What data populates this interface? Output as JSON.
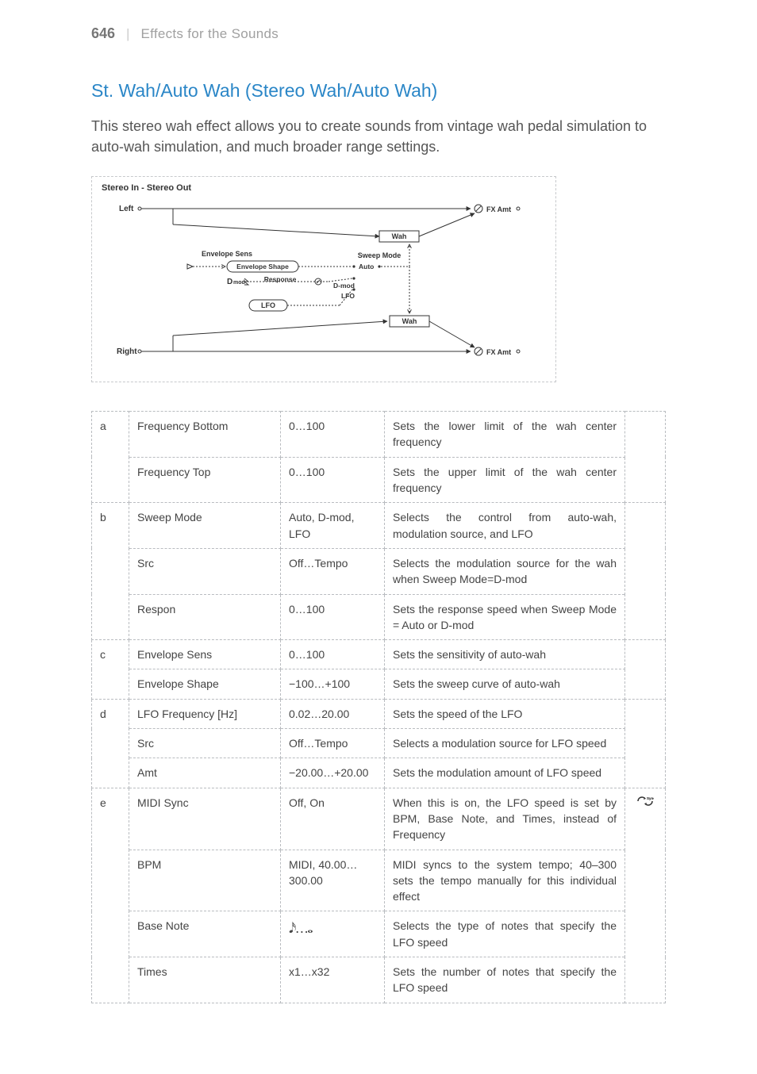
{
  "header": {
    "page_number": "646",
    "section": "Effects for the Sounds"
  },
  "title": "St. Wah/Auto Wah (Stereo Wah/Auto Wah)",
  "intro": "This stereo wah effect allows you to create sounds from vintage wah pedal simulation to auto-wah simulation, and much broader range settings.",
  "diagram": {
    "caption": "Stereo In - Stereo Out",
    "left_label": "Left",
    "right_label": "Right",
    "fx_amt": "FX Amt",
    "wah": "Wah",
    "envelope_sens": "Envelope Sens",
    "envelope_shape": "Envelope Shape",
    "sweep_mode": "Sweep Mode",
    "auto": "Auto",
    "response": "Response",
    "d_mod_label": "D-mod",
    "d_mod_bold": "D",
    "d_mod_suffix": "mod",
    "lfo_label": "LFO",
    "lfo_block": "LFO"
  },
  "table": {
    "rows": [
      {
        "group": "a",
        "name": "Frequency Bottom",
        "range": "0…100",
        "desc": "Sets the lower limit of the wah center frequency",
        "icon": ""
      },
      {
        "group": "",
        "name": "Frequency Top",
        "range": "0…100",
        "desc": "Sets the upper limit of the wah center frequency",
        "icon": ""
      },
      {
        "group": "b",
        "name": "Sweep Mode",
        "range": "Auto, D-mod, LFO",
        "desc": "Selects the control from auto-wah, modulation source, and LFO",
        "icon": ""
      },
      {
        "group": "",
        "name": "Src",
        "range": "Off…Tempo",
        "desc": "Selects the modulation source for the wah when Sweep Mode=D-mod",
        "icon": ""
      },
      {
        "group": "",
        "name": "Respon",
        "range": "0…100",
        "desc": "Sets the response speed when Sweep Mode = Auto or D-mod",
        "icon": ""
      },
      {
        "group": "c",
        "name": "Envelope Sens",
        "range": "0…100",
        "desc": "Sets the sensitivity of auto-wah",
        "icon": ""
      },
      {
        "group": "",
        "name": "Envelope Shape",
        "range": "−100…+100",
        "desc": "Sets the sweep curve of auto-wah",
        "icon": ""
      },
      {
        "group": "d",
        "name": "LFO Frequency [Hz]",
        "range": "0.02…20.00",
        "desc": "Sets the speed of the LFO",
        "icon": ""
      },
      {
        "group": "",
        "name": "Src",
        "range": "Off…Tempo",
        "desc": "Selects a modulation source for LFO speed",
        "icon": ""
      },
      {
        "group": "",
        "name": "Amt",
        "range": "−20.00…+20.00",
        "desc": "Sets the modulation amount of LFO speed",
        "icon": ""
      },
      {
        "group": "e",
        "name": "MIDI Sync",
        "range": "Off, On",
        "desc": "When this is on, the LFO speed is set by BPM, Base Note, and Times, instead of Frequency",
        "icon": "sync"
      },
      {
        "group": "",
        "name": "BPM",
        "range": "MIDI, 40.00…300.00",
        "desc": "MIDI syncs to the system tempo; 40–300 sets the tempo manually for this individual effect",
        "icon": ""
      },
      {
        "group": "",
        "name": "Base Note",
        "range": "notes",
        "desc": "Selects the type of notes that specify the LFO speed",
        "icon": ""
      },
      {
        "group": "",
        "name": "Times",
        "range": "x1…x32",
        "desc": "Sets the number of notes that specify the LFO speed",
        "icon": ""
      }
    ]
  },
  "row_groups": [
    {
      "group": "a",
      "span": 2
    },
    {
      "group": "b",
      "span": 3
    },
    {
      "group": "c",
      "span": 2
    },
    {
      "group": "d",
      "span": 3
    },
    {
      "group": "e",
      "span": 4
    }
  ],
  "note_glyph": "𝅘𝅥𝅯…𝅝",
  "sync_glyph": "⮔"
}
